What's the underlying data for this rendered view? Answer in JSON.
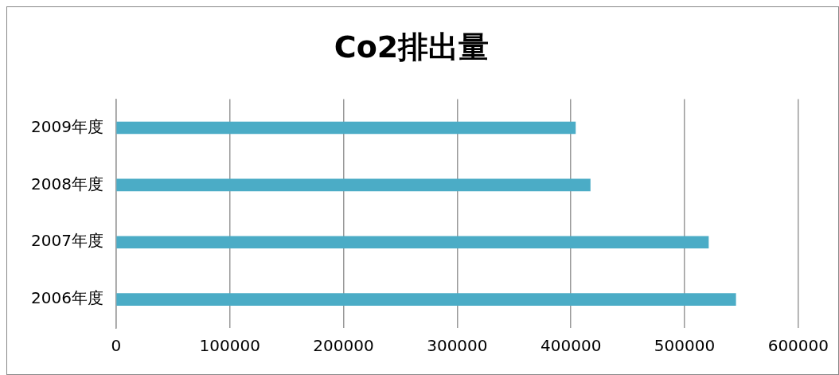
{
  "chart_data": {
    "type": "bar",
    "title": "Co2排出量",
    "orientation": "horizontal",
    "categories": [
      "2009年度",
      "2008年度",
      "2007年度",
      "2006年度"
    ],
    "values": [
      404000,
      417000,
      521000,
      545000
    ],
    "color": "#4bacc6",
    "xlim": [
      0,
      600000
    ],
    "xticks": [
      0,
      100000,
      200000,
      300000,
      400000,
      500000,
      600000
    ],
    "grid": "x",
    "legend": false
  }
}
